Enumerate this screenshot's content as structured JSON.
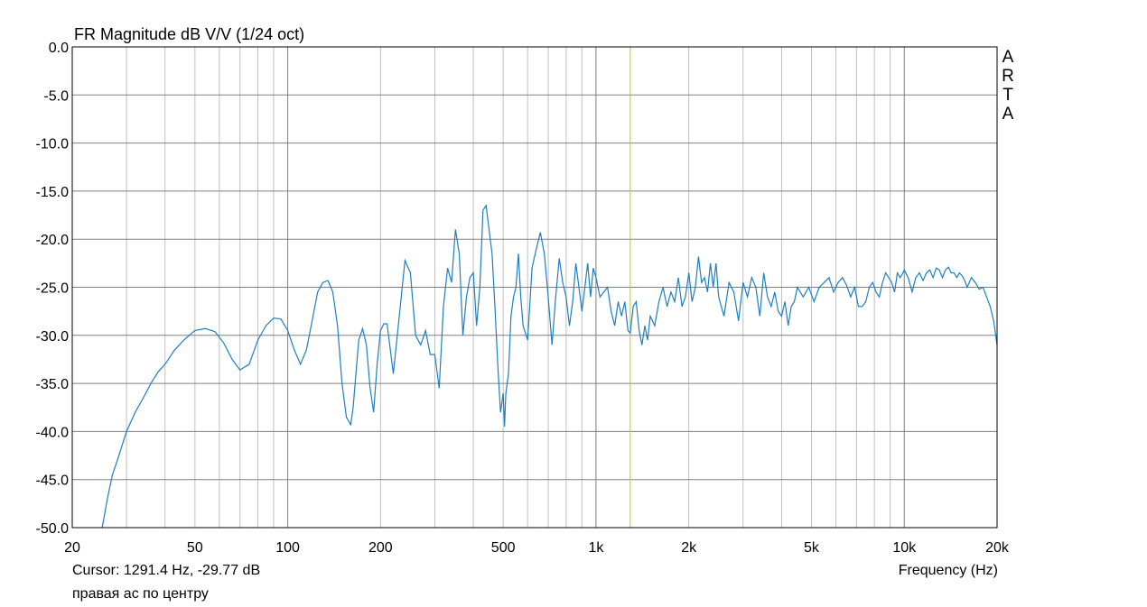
{
  "chart_data": {
    "type": "line",
    "title": "FR Magnitude dB V/V (1/24 oct)",
    "xlabel": "Frequency (Hz)",
    "ylabel": "",
    "x_scale": "log",
    "xlim": [
      20,
      20000
    ],
    "ylim": [
      -50,
      0
    ],
    "x_ticks": [
      {
        "value": 20,
        "label": "20"
      },
      {
        "value": 50,
        "label": "50"
      },
      {
        "value": 100,
        "label": "100"
      },
      {
        "value": 200,
        "label": "200"
      },
      {
        "value": 500,
        "label": "500"
      },
      {
        "value": 1000,
        "label": "1k"
      },
      {
        "value": 2000,
        "label": "2k"
      },
      {
        "value": 5000,
        "label": "5k"
      },
      {
        "value": 10000,
        "label": "10k"
      },
      {
        "value": 20000,
        "label": "20k"
      }
    ],
    "y_ticks": [
      "0.0",
      "-5.0",
      "-10.0",
      "-15.0",
      "-20.0",
      "-25.0",
      "-30.0",
      "-35.0",
      "-40.0",
      "-45.0",
      "-50.0"
    ],
    "grid": true,
    "brand_letters": [
      "A",
      "R",
      "T",
      "A"
    ],
    "cursor_frequency_hz": 1291.4,
    "cursor_readout": "Cursor: 1291.4 Hz, -29.77 dB",
    "caption": "правая ас по центру",
    "colors": {
      "trace": "#1f7fbf",
      "cursor": "#c8c800",
      "grid": "#c0c0c0",
      "grid_major": "#808080",
      "frame": "#000000"
    },
    "series": [
      {
        "x": [
          25,
          26,
          27,
          28,
          30,
          32,
          34,
          36,
          38,
          40,
          43,
          46,
          50,
          54,
          58,
          62,
          66,
          70,
          75,
          80,
          85,
          90,
          95,
          100,
          105,
          110,
          115,
          120,
          125,
          130,
          135,
          140,
          145,
          150,
          155,
          160,
          163,
          170,
          175,
          180,
          185,
          190,
          195,
          200,
          205,
          210,
          220,
          230,
          240,
          250,
          260,
          270,
          280,
          290,
          300,
          310,
          320,
          330,
          340,
          350,
          360,
          370,
          380,
          390,
          400,
          410,
          420,
          430,
          440,
          450,
          460,
          470,
          480,
          490,
          500,
          505,
          510,
          520,
          530,
          540,
          550,
          560,
          570,
          580,
          600,
          620,
          640,
          660,
          680,
          700,
          720,
          740,
          760,
          780,
          800,
          820,
          840,
          860,
          880,
          900,
          920,
          940,
          960,
          980,
          1000,
          1030,
          1060,
          1090,
          1120,
          1150,
          1180,
          1210,
          1240,
          1270,
          1291,
          1320,
          1350,
          1380,
          1410,
          1440,
          1470,
          1500,
          1550,
          1600,
          1650,
          1700,
          1750,
          1800,
          1850,
          1900,
          1950,
          2000,
          2050,
          2100,
          2150,
          2200,
          2250,
          2300,
          2350,
          2400,
          2450,
          2500,
          2600,
          2700,
          2800,
          2900,
          3000,
          3100,
          3200,
          3300,
          3400,
          3500,
          3600,
          3700,
          3800,
          3900,
          4000,
          4100,
          4200,
          4300,
          4400,
          4500,
          4700,
          4900,
          5100,
          5300,
          5500,
          5700,
          5900,
          6100,
          6300,
          6500,
          6700,
          6900,
          7100,
          7300,
          7500,
          7700,
          7900,
          8100,
          8300,
          8500,
          8700,
          8900,
          9100,
          9300,
          9500,
          9700,
          9900,
          10000,
          10300,
          10600,
          10900,
          11200,
          11500,
          11800,
          12100,
          12400,
          12700,
          13000,
          13300,
          13600,
          13900,
          14200,
          14500,
          14800,
          15100,
          15400,
          15700,
          16000,
          16500,
          17000,
          17500,
          18000,
          18500,
          19000,
          19500,
          20000
        ],
        "y": [
          -50.0,
          -47.0,
          -44.5,
          -43.0,
          -40.0,
          -38.0,
          -36.5,
          -35.0,
          -33.8,
          -33.0,
          -31.5,
          -30.5,
          -29.5,
          -29.3,
          -29.6,
          -30.8,
          -32.5,
          -33.6,
          -33.0,
          -30.5,
          -29.0,
          -28.2,
          -28.3,
          -29.5,
          -31.5,
          -33.0,
          -31.5,
          -28.5,
          -25.5,
          -24.5,
          -24.3,
          -25.5,
          -29.0,
          -35.0,
          -38.5,
          -39.3,
          -37.5,
          -30.5,
          -29.3,
          -31.0,
          -35.5,
          -38.0,
          -33.0,
          -29.5,
          -28.8,
          -28.8,
          -34.0,
          -28.0,
          -22.2,
          -23.5,
          -30.0,
          -31.0,
          -29.5,
          -32.0,
          -32.0,
          -35.5,
          -27.0,
          -23.0,
          -24.5,
          -19.0,
          -21.5,
          -30.0,
          -26.0,
          -24.0,
          -23.5,
          -29.0,
          -25.0,
          -17.0,
          -16.5,
          -19.0,
          -21.5,
          -27.0,
          -33.0,
          -38.0,
          -36.0,
          -39.5,
          -36.0,
          -34.0,
          -28.0,
          -26.0,
          -25.0,
          -21.5,
          -26.0,
          -29.0,
          -30.5,
          -23.0,
          -21.0,
          -19.3,
          -21.5,
          -26.0,
          -31.0,
          -26.0,
          -22.0,
          -24.5,
          -26.0,
          -29.0,
          -26.5,
          -22.5,
          -25.0,
          -27.5,
          -25.0,
          -22.5,
          -26.0,
          -23.0,
          -24.0,
          -26.0,
          -25.5,
          -25.0,
          -27.5,
          -29.0,
          -26.5,
          -28.0,
          -26.5,
          -29.5,
          -29.77,
          -27.0,
          -26.5,
          -29.5,
          -31.0,
          -29.0,
          -30.5,
          -28.0,
          -29.0,
          -26.5,
          -25.0,
          -27.0,
          -25.5,
          -26.5,
          -24.0,
          -27.0,
          -26.0,
          -23.5,
          -26.5,
          -25.0,
          -21.8,
          -24.5,
          -24.0,
          -25.5,
          -22.5,
          -25.0,
          -22.5,
          -26.0,
          -28.0,
          -24.5,
          -25.5,
          -28.5,
          -24.5,
          -26.0,
          -24.0,
          -25.0,
          -28.0,
          -23.5,
          -26.0,
          -27.0,
          -25.5,
          -27.5,
          -28.0,
          -26.5,
          -29.0,
          -27.0,
          -26.5,
          -25.0,
          -26.0,
          -25.0,
          -26.5,
          -25.0,
          -24.5,
          -24.0,
          -25.5,
          -24.5,
          -24.0,
          -24.8,
          -26.0,
          -25.0,
          -27.0,
          -27.0,
          -26.5,
          -25.0,
          -24.5,
          -25.5,
          -26.0,
          -24.5,
          -23.5,
          -24.0,
          -24.5,
          -25.5,
          -23.5,
          -24.0,
          -23.5,
          -23.2,
          -24.0,
          -25.5,
          -24.0,
          -23.5,
          -24.3,
          -23.5,
          -23.2,
          -24.0,
          -23.0,
          -23.2,
          -24.0,
          -23.2,
          -22.9,
          -23.5,
          -23.5,
          -24.0,
          -23.5,
          -23.8,
          -24.3,
          -25.0,
          -24.0,
          -24.5,
          -25.2,
          -25.0,
          -26.0,
          -27.0,
          -28.5,
          -31.0
        ]
      }
    ]
  }
}
